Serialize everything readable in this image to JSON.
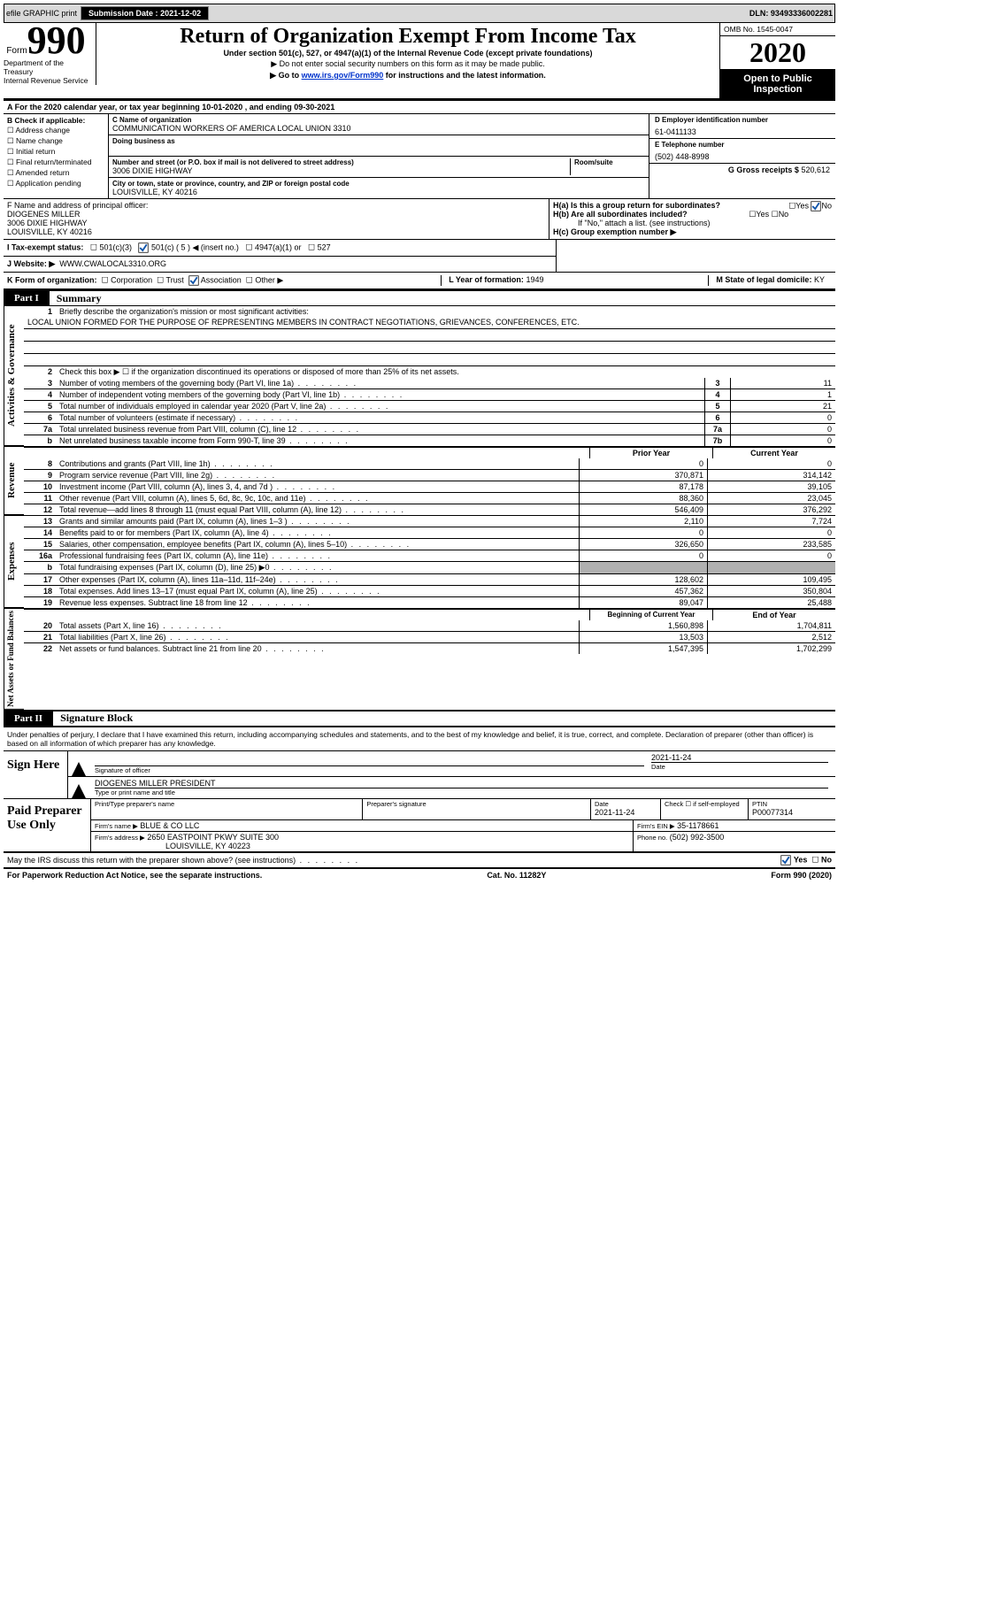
{
  "topbar": {
    "efile": "efile GRAPHIC print",
    "submission_label": "Submission Date :",
    "submission_date": "2021-12-02",
    "dln_label": "DLN:",
    "dln": "93493336002281"
  },
  "header": {
    "form_label": "Form",
    "form_num": "990",
    "title": "Return of Organization Exempt From Income Tax",
    "subtitle": "Under section 501(c), 527, or 4947(a)(1) of the Internal Revenue Code (except private foundations)",
    "note1": "▶ Do not enter social security numbers on this form as it may be made public.",
    "note2_pre": "▶ Go to ",
    "note2_link": "www.irs.gov/Form990",
    "note2_post": " for instructions and the latest information.",
    "omb": "OMB No. 1545-0047",
    "year": "2020",
    "open_public_1": "Open to Public",
    "open_public_2": "Inspection",
    "dept1": "Department of the Treasury",
    "dept2": "Internal Revenue Service"
  },
  "line_a": "A For the 2020 calendar year, or tax year beginning 10-01-2020   , and ending 09-30-2021",
  "section_b": {
    "label": "B Check if applicable:",
    "opts": [
      "Address change",
      "Name change",
      "Initial return",
      "Final return/terminated",
      "Amended return",
      "Application pending"
    ]
  },
  "section_c": {
    "name_label": "C Name of organization",
    "name": "COMMUNICATION WORKERS OF AMERICA LOCAL UNION 3310",
    "dba_label": "Doing business as",
    "addr_label": "Number and street (or P.O. box if mail is not delivered to street address)",
    "room_label": "Room/suite",
    "addr": "3006 DIXIE HIGHWAY",
    "city_label": "City or town, state or province, country, and ZIP or foreign postal code",
    "city": "LOUISVILLE, KY  40216"
  },
  "section_d": {
    "ein_label": "D Employer identification number",
    "ein": "61-0411133"
  },
  "section_e": {
    "tel_label": "E Telephone number",
    "tel": "(502) 448-8998"
  },
  "section_g": {
    "label": "G Gross receipts $",
    "val": "520,612"
  },
  "section_f": {
    "label": "F  Name and address of principal officer:",
    "name": "DIOGENES MILLER",
    "addr1": "3006 DIXIE HIGHWAY",
    "addr2": "LOUISVILLE, KY  40216"
  },
  "section_h": {
    "ha": "H(a)  Is this a group return for subordinates?",
    "hb": "H(b)  Are all subordinates included?",
    "hb_note": "If \"No,\" attach a list. (see instructions)",
    "hc": "H(c)  Group exemption number ▶",
    "yes": "Yes",
    "no": "No"
  },
  "section_i": {
    "label": "I   Tax-exempt status:",
    "opt1": "501(c)(3)",
    "opt2": "501(c) ( 5 ) ◀ (insert no.)",
    "opt3": "4947(a)(1) or",
    "opt4": "527"
  },
  "section_j": {
    "label": "J   Website: ▶",
    "val": "WWW.CWALOCAL3310.ORG"
  },
  "section_k": {
    "label": "K Form of organization:",
    "opts": [
      "Corporation",
      "Trust",
      "Association",
      "Other ▶"
    ]
  },
  "section_l": {
    "label": "L Year of formation:",
    "val": "1949"
  },
  "section_m": {
    "label": "M State of legal domicile:",
    "val": "KY"
  },
  "part1": {
    "tab": "Part I",
    "title": "Summary",
    "q1": "Briefly describe the organization's mission or most significant activities:",
    "mission": "LOCAL UNION FORMED FOR THE PURPOSE OF REPRESENTING MEMBERS IN CONTRACT NEGOTIATIONS, GRIEVANCES, CONFERENCES, ETC.",
    "q2": "Check this box ▶ ☐  if the organization discontinued its operations or disposed of more than 25% of its net assets.",
    "q3": "Number of voting members of the governing body (Part VI, line 1a)",
    "q4": "Number of independent voting members of the governing body (Part VI, line 1b)",
    "q5": "Total number of individuals employed in calendar year 2020 (Part V, line 2a)",
    "q6": "Total number of volunteers (estimate if necessary)",
    "q7a": "Total unrelated business revenue from Part VIII, column (C), line 12",
    "q7b": "Net unrelated business taxable income from Form 990-T, line 39",
    "v3": "11",
    "v4": "1",
    "v5": "21",
    "v6": "0",
    "v7a": "0",
    "v7b": "0",
    "hdr_prior": "Prior Year",
    "hdr_current": "Current Year",
    "revenue_rows": [
      {
        "n": "8",
        "t": "Contributions and grants (Part VIII, line 1h)",
        "p": "0",
        "c": "0"
      },
      {
        "n": "9",
        "t": "Program service revenue (Part VIII, line 2g)",
        "p": "370,871",
        "c": "314,142"
      },
      {
        "n": "10",
        "t": "Investment income (Part VIII, column (A), lines 3, 4, and 7d )",
        "p": "87,178",
        "c": "39,105"
      },
      {
        "n": "11",
        "t": "Other revenue (Part VIII, column (A), lines 5, 6d, 8c, 9c, 10c, and 11e)",
        "p": "88,360",
        "c": "23,045"
      },
      {
        "n": "12",
        "t": "Total revenue—add lines 8 through 11 (must equal Part VIII, column (A), line 12)",
        "p": "546,409",
        "c": "376,292"
      }
    ],
    "expense_rows": [
      {
        "n": "13",
        "t": "Grants and similar amounts paid (Part IX, column (A), lines 1–3 )",
        "p": "2,110",
        "c": "7,724"
      },
      {
        "n": "14",
        "t": "Benefits paid to or for members (Part IX, column (A), line 4)",
        "p": "0",
        "c": "0"
      },
      {
        "n": "15",
        "t": "Salaries, other compensation, employee benefits (Part IX, column (A), lines 5–10)",
        "p": "326,650",
        "c": "233,585"
      },
      {
        "n": "16a",
        "t": "Professional fundraising fees (Part IX, column (A), line 11e)",
        "p": "0",
        "c": "0"
      },
      {
        "n": "b",
        "t": "Total fundraising expenses (Part IX, column (D), line 25) ▶0",
        "p": "__SHADED__",
        "c": "__SHADED__"
      },
      {
        "n": "17",
        "t": "Other expenses (Part IX, column (A), lines 11a–11d, 11f–24e)",
        "p": "128,602",
        "c": "109,495"
      },
      {
        "n": "18",
        "t": "Total expenses. Add lines 13–17 (must equal Part IX, column (A), line 25)",
        "p": "457,362",
        "c": "350,804"
      },
      {
        "n": "19",
        "t": "Revenue less expenses. Subtract line 18 from line 12",
        "p": "89,047",
        "c": "25,488"
      }
    ],
    "hdr_begin": "Beginning of Current Year",
    "hdr_end": "End of Year",
    "net_rows": [
      {
        "n": "20",
        "t": "Total assets (Part X, line 16)",
        "p": "1,560,898",
        "c": "1,704,811"
      },
      {
        "n": "21",
        "t": "Total liabilities (Part X, line 26)",
        "p": "13,503",
        "c": "2,512"
      },
      {
        "n": "22",
        "t": "Net assets or fund balances. Subtract line 21 from line 20",
        "p": "1,547,395",
        "c": "1,702,299"
      }
    ],
    "vert1": "Activities & Governance",
    "vert2": "Revenue",
    "vert3": "Expenses",
    "vert4": "Net Assets or Fund Balances"
  },
  "part2": {
    "tab": "Part II",
    "title": "Signature Block",
    "declaration": "Under penalties of perjury, I declare that I have examined this return, including accompanying schedules and statements, and to the best of my knowledge and belief, it is true, correct, and complete. Declaration of preparer (other than officer) is based on all information of which preparer has any knowledge."
  },
  "sign": {
    "label": "Sign Here",
    "sig_label": "Signature of officer",
    "date_label": "Date",
    "date": "2021-11-24",
    "name": "DIOGENES MILLER PRESIDENT",
    "name_label": "Type or print name and title"
  },
  "paid": {
    "label": "Paid Preparer Use Only",
    "print_label": "Print/Type preparer's name",
    "sig_label": "Preparer's signature",
    "date_label": "Date",
    "date": "2021-11-24",
    "check_label": "Check ☐ if self-employed",
    "ptin_label": "PTIN",
    "ptin": "P00077314",
    "firm_name_label": "Firm's name    ▶",
    "firm_name": "BLUE & CO LLC",
    "ein_label": "Firm's EIN ▶",
    "ein": "35-1178661",
    "addr_label": "Firm's address ▶",
    "addr1": "2650 EASTPOINT PKWY SUITE 300",
    "addr2": "LOUISVILLE, KY  40223",
    "phone_label": "Phone no.",
    "phone": "(502) 992-3500"
  },
  "bottom": {
    "q": "May the IRS discuss this return with the preparer shown above? (see instructions)",
    "yes": "Yes",
    "no": "No"
  },
  "footer": {
    "left": "For Paperwork Reduction Act Notice, see the separate instructions.",
    "mid": "Cat. No. 11282Y",
    "right_pre": "Form ",
    "right_num": "990",
    "right_post": " (2020)"
  }
}
